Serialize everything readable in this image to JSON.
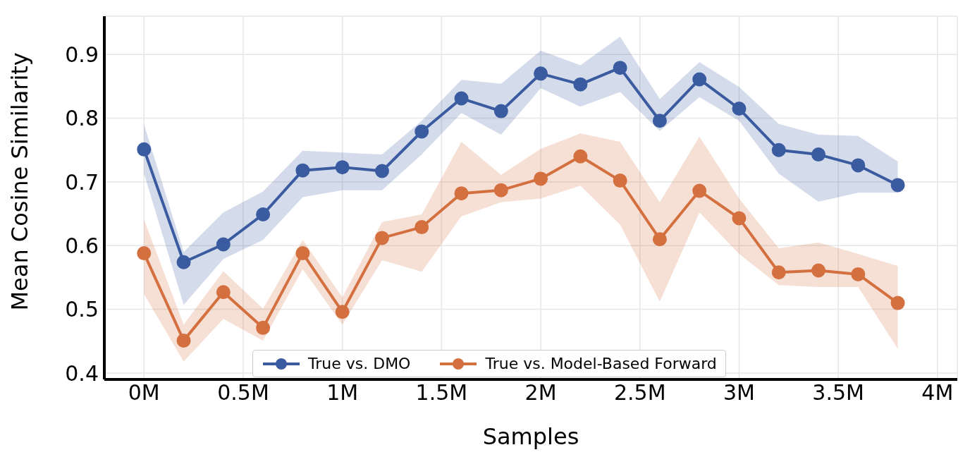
{
  "chart_data": {
    "type": "line",
    "xlabel": "Samples",
    "ylabel": "Mean Cosine Similarity",
    "x": [
      0,
      0.2,
      0.4,
      0.6,
      0.8,
      1.0,
      1.2,
      1.4,
      1.6,
      1.8,
      2.0,
      2.2,
      2.4,
      2.6,
      2.8,
      3.0,
      3.2,
      3.4,
      3.6,
      3.8
    ],
    "series": [
      {
        "name": "True vs. DMO",
        "color": "#3a5ba0",
        "values": [
          0.751,
          0.574,
          0.602,
          0.649,
          0.718,
          0.723,
          0.717,
          0.779,
          0.831,
          0.811,
          0.87,
          0.853,
          0.879,
          0.796,
          0.861,
          0.815,
          0.75,
          0.743,
          0.726,
          0.695
        ],
        "lower": [
          0.713,
          0.507,
          0.579,
          0.609,
          0.676,
          0.687,
          0.687,
          0.743,
          0.808,
          0.774,
          0.847,
          0.818,
          0.841,
          0.78,
          0.833,
          0.796,
          0.713,
          0.669,
          0.683,
          0.683
        ],
        "upper": [
          0.79,
          0.59,
          0.652,
          0.685,
          0.749,
          0.746,
          0.743,
          0.796,
          0.86,
          0.854,
          0.906,
          0.883,
          0.928,
          0.83,
          0.888,
          0.849,
          0.791,
          0.774,
          0.772,
          0.732
        ]
      },
      {
        "name": "True vs. Model-Based Forward",
        "color": "#d4703f",
        "values": [
          0.588,
          0.451,
          0.527,
          0.471,
          0.588,
          0.496,
          0.612,
          0.629,
          0.682,
          0.687,
          0.705,
          0.74,
          0.702,
          0.61,
          0.686,
          0.643,
          0.558,
          0.561,
          0.555,
          0.51
        ],
        "lower": [
          0.524,
          0.418,
          0.485,
          0.451,
          0.563,
          0.476,
          0.577,
          0.559,
          0.646,
          0.668,
          0.674,
          0.694,
          0.633,
          0.512,
          0.652,
          0.587,
          0.538,
          0.535,
          0.535,
          0.438
        ],
        "upper": [
          0.641,
          0.476,
          0.56,
          0.501,
          0.609,
          0.519,
          0.637,
          0.649,
          0.763,
          0.711,
          0.752,
          0.776,
          0.763,
          0.668,
          0.771,
          0.674,
          0.596,
          0.605,
          0.587,
          0.568
        ]
      }
    ],
    "xlim": [
      -0.2,
      4.1
    ],
    "xticks": [
      {
        "value": 0,
        "label": "0M"
      },
      {
        "value": 0.5,
        "label": "0.5M"
      },
      {
        "value": 1,
        "label": "1M"
      },
      {
        "value": 1.5,
        "label": "1.5M"
      },
      {
        "value": 2,
        "label": "2M"
      },
      {
        "value": 2.5,
        "label": "2.5M"
      },
      {
        "value": 3,
        "label": "3M"
      },
      {
        "value": 3.5,
        "label": "3.5M"
      },
      {
        "value": 4,
        "label": "4M"
      }
    ],
    "ylim": [
      0.39,
      0.96
    ],
    "yticks": [
      0.4,
      0.5,
      0.6,
      0.7,
      0.8,
      0.9
    ],
    "grid": true,
    "legend": "bottom",
    "marker": "circle",
    "line_style": "solid"
  }
}
